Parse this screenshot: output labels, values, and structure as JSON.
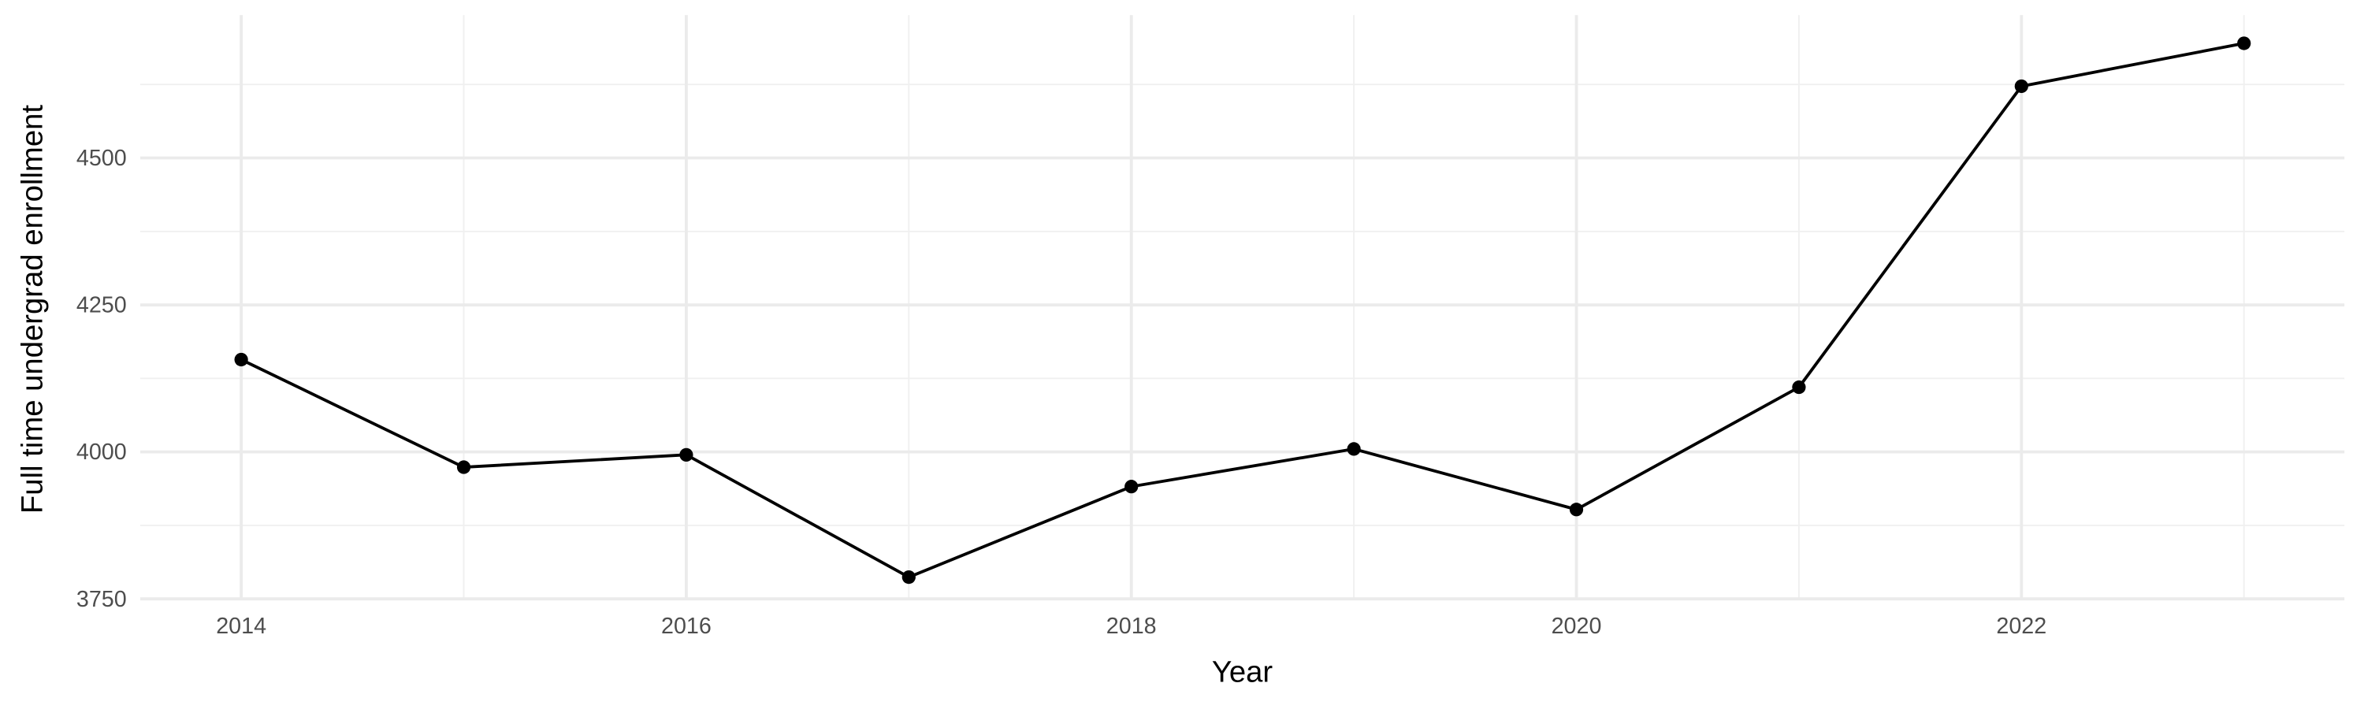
{
  "chart_data": {
    "type": "line",
    "title": "",
    "xlabel": "Year",
    "ylabel": "Full time undergrad enrollment",
    "x": [
      2014,
      2015,
      2016,
      2017,
      2018,
      2019,
      2020,
      2021,
      2022,
      2023
    ],
    "series": [
      {
        "values": [
          4157,
          3974,
          3995,
          3787,
          3941,
          4005,
          3902,
          4110,
          4622,
          4695
        ],
        "color": "#000000"
      }
    ],
    "xlim": [
      2013.55,
      2023.35
    ],
    "ylim": [
      3750,
      4743
    ],
    "x_ticks": [
      "2014",
      "2016",
      "2018",
      "2020",
      "2022"
    ],
    "y_ticks": [
      "3750",
      "4000",
      "4250",
      "4500"
    ],
    "grid": true,
    "markers": true,
    "legend": "none"
  }
}
